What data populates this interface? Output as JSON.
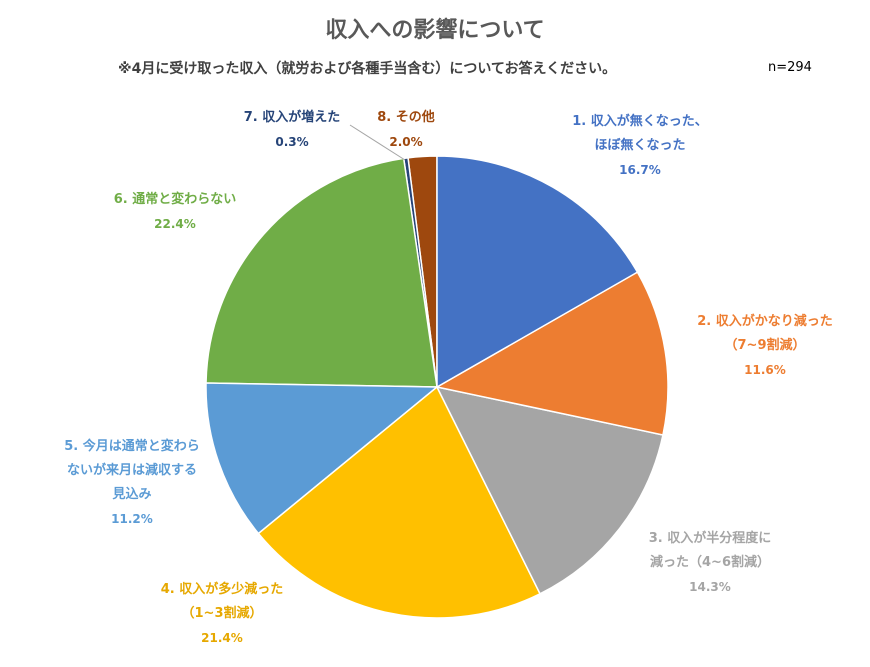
{
  "chart_data": {
    "type": "pie",
    "title": "収入への影響について",
    "subtitle": "※4月に受け取った収入（就労および各種手当含む）についてお答えください。",
    "note": "n=294",
    "categories": [
      "1. 収入が無くなった、\nほぼ無くなった",
      "2. 収入がかなり減った\n（7~9割減）",
      "3. 収入が半分程度に\n減った（4~6割減）",
      "4. 収入が多少減った\n（1~3割減）",
      "5. 今月は通常と変わら\nないが来月は減収する\n見込み",
      "6. 通常と変わらない",
      "7. 収入が増えた",
      "8. その他"
    ],
    "values": [
      16.7,
      11.6,
      14.3,
      21.4,
      11.2,
      22.4,
      0.3,
      2.0
    ],
    "value_labels": [
      "16.7%",
      "11.6%",
      "14.3%",
      "21.4%",
      "11.2%",
      "22.4%",
      "0.3%",
      "2.0%"
    ],
    "colors": [
      "#4472c4",
      "#ed7d31",
      "#a5a5a5",
      "#ffc000",
      "#5b9bd5",
      "#70ad47",
      "#264478",
      "#9e480e"
    ]
  }
}
